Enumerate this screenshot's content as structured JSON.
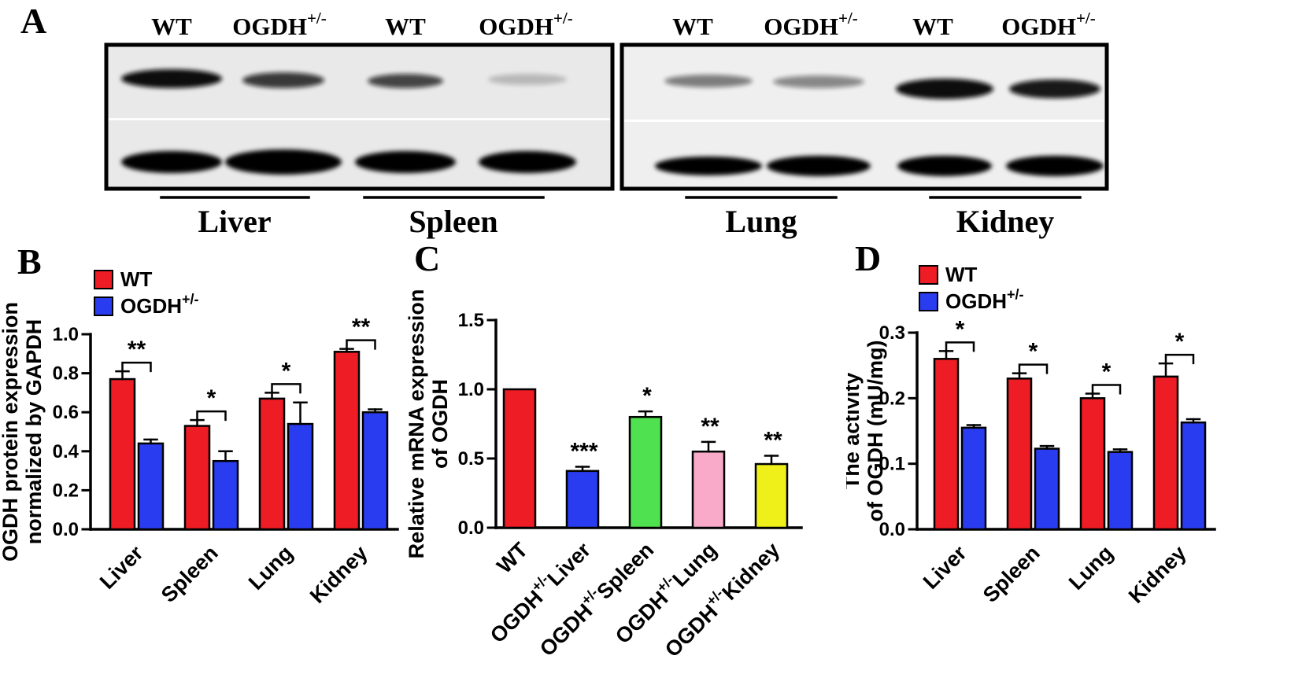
{
  "panelA": {
    "label": "A",
    "blots": [
      {
        "lane_labels": [
          "WT",
          "OGDH^{+/-}",
          "WT",
          "OGDH^{+/-}"
        ],
        "tissues": [
          "Liver",
          "Spleen"
        ],
        "top_bands": [
          1.0,
          0.8,
          0.75,
          0.22
        ],
        "bottom_bands": [
          1,
          1,
          1,
          1
        ]
      },
      {
        "lane_labels": [
          "WT",
          "OGDH^{+/-}",
          "WT",
          "OGDH^{+/-}"
        ],
        "tissues": [
          "Lung",
          "Kidney"
        ],
        "top_bands": [
          0.5,
          0.45,
          1.0,
          0.95
        ],
        "bottom_bands": [
          1,
          1,
          1,
          1
        ]
      }
    ]
  },
  "chart_data": [
    {
      "panel": "B",
      "type": "bar",
      "title": "",
      "categories": [
        "Liver",
        "Spleen",
        "Lung",
        "Kidney"
      ],
      "series": [
        {
          "name": "WT",
          "color": "#ee1c25",
          "values": [
            0.77,
            0.53,
            0.67,
            0.91
          ],
          "errors": [
            0.04,
            0.03,
            0.03,
            0.015
          ]
        },
        {
          "name": "OGDH^{+/-}",
          "color": "#2a3cf0",
          "values": [
            0.44,
            0.35,
            0.54,
            0.6
          ],
          "errors": [
            0.02,
            0.05,
            0.11,
            0.015
          ]
        }
      ],
      "significance": [
        "**",
        "*",
        "*",
        "**"
      ],
      "ylabel_lines": [
        "OGDH protein expression",
        "normalized by GAPDH"
      ],
      "ylim": [
        0,
        1.0
      ],
      "yticks": [
        "0.0",
        "0.2",
        "0.4",
        "0.6",
        "0.8",
        "1.0"
      ],
      "legend_position": "top-left",
      "grid": false
    },
    {
      "panel": "C",
      "type": "bar",
      "title": "",
      "categories": [
        "WT",
        "OGDH^{+/-}Liver",
        "OGDH^{+/-}Spleen",
        "OGDH^{+/-}Lung",
        "OGDH^{+/-}Kidney"
      ],
      "values": [
        1.0,
        0.41,
        0.8,
        0.55,
        0.46
      ],
      "errors": [
        0,
        0.03,
        0.04,
        0.07,
        0.06
      ],
      "colors": [
        "#ee1c25",
        "#2a3cf0",
        "#4fe14f",
        "#f9aac9",
        "#eff019"
      ],
      "significance": [
        "",
        "***",
        "*",
        "**",
        "**"
      ],
      "ylabel_lines": [
        "Relative mRNA expression",
        "of OGDH"
      ],
      "ylim": [
        0,
        1.5
      ],
      "yticks": [
        "0.0",
        "0.5",
        "1.0",
        "1.5"
      ],
      "grid": false
    },
    {
      "panel": "D",
      "type": "bar",
      "title": "",
      "categories": [
        "Liver",
        "Spleen",
        "Lung",
        "Kidney"
      ],
      "series": [
        {
          "name": "WT",
          "color": "#ee1c25",
          "values": [
            0.26,
            0.23,
            0.2,
            0.233
          ],
          "errors": [
            0.012,
            0.008,
            0.007,
            0.02
          ]
        },
        {
          "name": "OGDH^{+/-}",
          "color": "#2a3cf0",
          "values": [
            0.155,
            0.123,
            0.118,
            0.163
          ],
          "errors": [
            0.004,
            0.004,
            0.004,
            0.005
          ]
        }
      ],
      "significance": [
        "*",
        "*",
        "*",
        "*"
      ],
      "ylabel_lines": [
        "The activity",
        "of OGDH (mU/mg)"
      ],
      "ylim": [
        0,
        0.3
      ],
      "yticks": [
        "0.0",
        "0.1",
        "0.2",
        "0.3"
      ],
      "legend_position": "top-left",
      "grid": false
    }
  ]
}
